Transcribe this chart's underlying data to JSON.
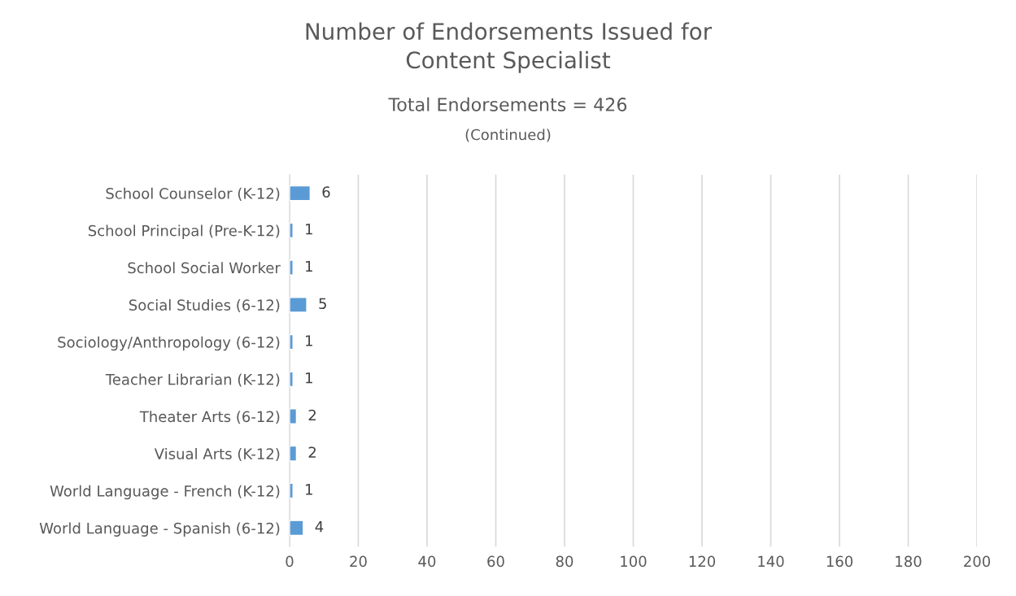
{
  "chart_data": {
    "type": "bar",
    "orientation": "horizontal",
    "title": "Number of Endorsements Issued for\nContent Specialist",
    "subtitle": "Total Endorsements = 426",
    "annotations": [
      "(Continued)"
    ],
    "categories": [
      "School Counselor (K-12)",
      "School Principal (Pre-K-12)",
      "School Social Worker",
      "Social Studies (6-12)",
      "Sociology/Anthropology (6-12)",
      "Teacher Librarian (K-12)",
      "Theater Arts (6-12)",
      "Visual Arts (K-12)",
      "World Language - French (K-12)",
      "World Language - Spanish (6-12)"
    ],
    "values": [
      6,
      1,
      1,
      5,
      1,
      1,
      2,
      2,
      1,
      4
    ],
    "color": "#5b9bd5",
    "xlim": [
      0,
      200
    ],
    "xticks": [
      0,
      20,
      40,
      60,
      80,
      100,
      120,
      140,
      160,
      180,
      200
    ],
    "grid": "x",
    "data_labels": true,
    "legend": false
  }
}
